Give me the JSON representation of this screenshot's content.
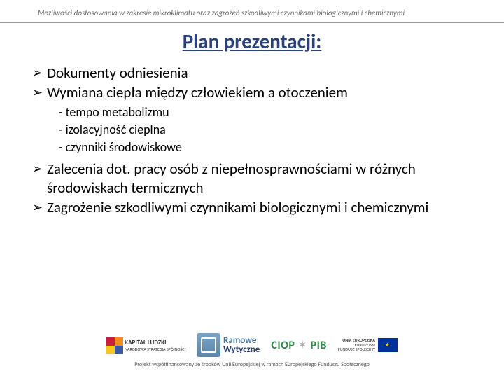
{
  "header": {
    "text": "Możliwości dostosowania w zakresie mikroklimatu oraz zagrożeń szkodliwymi czynnikami biologicznymi i chemicznymi",
    "color": "#6b6b6b",
    "fontsize": 11,
    "rule_color": "#999999"
  },
  "title": {
    "text": "Plan prezentacji:",
    "color": "#2a417a",
    "fontsize": 29
  },
  "bullets": {
    "b1": "Dokumenty odniesienia",
    "b2": "Wymiana ciepła między człowiekiem a otoczeniem",
    "sub": {
      "s1": "- tempo metabolizmu",
      "s2": "- izolacyjność cieplna",
      "s3": "- czynniki środowiskowe"
    },
    "b3": "Zalecenia dot. pracy osób z niepełnosprawnościami w różnych środowiskach termicznych",
    "b4": "Zagrożenie szkodliwymi czynnikami biologicznymi i chemicznymi",
    "marker": "➢",
    "fontsize": 21,
    "sub_fontsize": 18,
    "text_color": "#000000"
  },
  "logos": {
    "kapital": {
      "line1": "KAPITAŁ LUDZKI",
      "line2": "NARODOWA STRATEGIA SPÓJNOŚCI",
      "colors": [
        "#c81f3c",
        "#f28c1e",
        "#f7c61f",
        "#3a5aa0"
      ]
    },
    "ramowe": {
      "line1": "Ramowe",
      "line2": "Wytyczne",
      "color1": "#4a6f8f",
      "color2": "#2a3f6f"
    },
    "ciop": {
      "text1": "CIOP",
      "text2": "PIB",
      "color": "#2d8a46"
    },
    "ue": {
      "line1": "UNIA EUROPEJSKA",
      "line2": "EUROPEJSKI",
      "line3": "FUNDUSZ SPOŁECZNY",
      "flag_bg": "#003399",
      "flag_star": "#ffcc00"
    },
    "caption": "Projekt współfinansowany ze środków Unii Europejskiej w ramach Europejskiego Funduszu Społecznego"
  }
}
